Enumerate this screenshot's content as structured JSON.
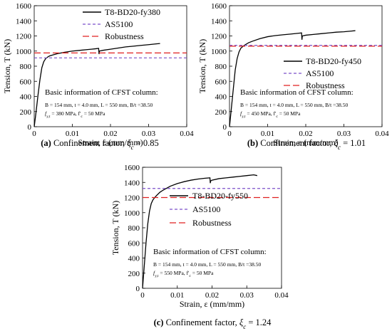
{
  "colors": {
    "curve": "#000000",
    "as5100": "#7b4fc9",
    "robustness": "#e02020",
    "axis": "#000000"
  },
  "info_title": "Basic information of CFST column:",
  "info_geom": "B = 154 mm, t = 4.0 mm, L = 550 mm, B/t =38.50",
  "chart_data": [
    {
      "type": "line",
      "id": "a",
      "xlabel": "Strain, ε (mm/mm)",
      "ylabel": "Tension, T (kN)",
      "xlim": [
        0,
        0.04
      ],
      "ylim": [
        0,
        1600
      ],
      "xticks": [
        "0",
        "0.01",
        "0.02",
        "0.03",
        "0.04"
      ],
      "yticks": [
        "0",
        "200",
        "400",
        "600",
        "800",
        "1000",
        "1200",
        "1400",
        "1600"
      ],
      "grid": false,
      "legend_position": "top-right",
      "series": [
        {
          "name": "T8-BD20-fy380",
          "style": "solid",
          "x": [
            0,
            0.0005,
            0.001,
            0.0015,
            0.002,
            0.0025,
            0.003,
            0.0035,
            0.004,
            0.005,
            0.006,
            0.008,
            0.01,
            0.012,
            0.014,
            0.016,
            0.0169,
            0.017,
            0.0171,
            0.018,
            0.02,
            0.022,
            0.024,
            0.026,
            0.028,
            0.03,
            0.032,
            0.033
          ],
          "y": [
            0,
            200,
            420,
            620,
            780,
            860,
            900,
            920,
            935,
            950,
            965,
            985,
            1000,
            1010,
            1020,
            1030,
            1035,
            960,
            1000,
            1010,
            1025,
            1040,
            1055,
            1065,
            1075,
            1085,
            1095,
            1100
          ]
        },
        {
          "name": "AS5100",
          "style": "dashed",
          "x": [
            0,
            0.04
          ],
          "y": [
            910,
            910
          ]
        },
        {
          "name": "Robustness",
          "style": "longdash",
          "x": [
            0,
            0.04
          ],
          "y": [
            975,
            975
          ]
        }
      ],
      "info_strength": "f_y,t = 380 MPa, f'_c = 50 MPa",
      "caption": {
        "label": "(a)",
        "text": "Confinement factor,",
        "xi": "ξ",
        "sub": "c",
        "value": "= 0.85"
      }
    },
    {
      "type": "line",
      "id": "b",
      "xlabel": "Strain, ε (mm/mm)",
      "ylabel": "Tension, T (kN)",
      "xlim": [
        0,
        0.04
      ],
      "ylim": [
        0,
        1600
      ],
      "xticks": [
        "0",
        "0.01",
        "0.02",
        "0.03",
        "0.04"
      ],
      "yticks": [
        "0",
        "200",
        "400",
        "600",
        "800",
        "1000",
        "1200",
        "1400",
        "1600"
      ],
      "grid": false,
      "legend_position": "right",
      "series": [
        {
          "name": "T8-BD20-fy450",
          "style": "solid",
          "x": [
            0,
            0.0005,
            0.001,
            0.0015,
            0.002,
            0.0025,
            0.003,
            0.0035,
            0.004,
            0.005,
            0.006,
            0.008,
            0.01,
            0.012,
            0.014,
            0.016,
            0.018,
            0.0189,
            0.019,
            0.0191,
            0.02,
            0.022,
            0.024,
            0.026,
            0.028,
            0.03,
            0.032,
            0.033
          ],
          "y": [
            0,
            250,
            500,
            750,
            900,
            990,
            1040,
            1060,
            1080,
            1110,
            1130,
            1165,
            1190,
            1205,
            1215,
            1225,
            1235,
            1240,
            1150,
            1200,
            1210,
            1220,
            1230,
            1240,
            1250,
            1255,
            1265,
            1270
          ]
        },
        {
          "name": "AS5100",
          "style": "dashed",
          "x": [
            0,
            0.04
          ],
          "y": [
            1075,
            1075
          ]
        },
        {
          "name": "Robustness",
          "style": "longdash",
          "x": [
            0,
            0.04
          ],
          "y": [
            1065,
            1065
          ]
        }
      ],
      "info_strength": "f_y,t = 450 MPa, f'_c = 50 MPa",
      "caption": {
        "label": "(b)",
        "text": "Confinement factor,",
        "xi": "ξ",
        "sub": "c",
        "value": "= 1.01"
      }
    },
    {
      "type": "line",
      "id": "c",
      "xlabel": "Strain, ε (mm/mm)",
      "ylabel": "Tension, T (kN)",
      "xlim": [
        0,
        0.04
      ],
      "ylim": [
        0,
        1600
      ],
      "xticks": [
        "0",
        "0.01",
        "0.02",
        "0.03",
        "0.04"
      ],
      "yticks": [
        "0",
        "200",
        "400",
        "600",
        "800",
        "1000",
        "1200",
        "1400",
        "1600"
      ],
      "grid": false,
      "legend_position": "right",
      "series": [
        {
          "name": "T8-BD20-fy550",
          "style": "solid",
          "x": [
            0,
            0.0005,
            0.001,
            0.0015,
            0.002,
            0.0025,
            0.003,
            0.0035,
            0.004,
            0.005,
            0.006,
            0.008,
            0.01,
            0.012,
            0.014,
            0.016,
            0.018,
            0.0194,
            0.0195,
            0.0196,
            0.02,
            0.022,
            0.024,
            0.026,
            0.028,
            0.03,
            0.032,
            0.033
          ],
          "y": [
            0,
            300,
            600,
            850,
            1020,
            1120,
            1170,
            1200,
            1225,
            1270,
            1300,
            1350,
            1385,
            1410,
            1430,
            1445,
            1455,
            1460,
            1390,
            1420,
            1430,
            1450,
            1460,
            1470,
            1480,
            1490,
            1500,
            1490
          ]
        },
        {
          "name": "AS5100",
          "style": "dashed",
          "x": [
            0,
            0.04
          ],
          "y": [
            1320,
            1320
          ]
        },
        {
          "name": "Robustness",
          "style": "longdash",
          "x": [
            0,
            0.04
          ],
          "y": [
            1200,
            1200
          ]
        }
      ],
      "info_strength": "f_y,t = 550 MPa, f'_c = 50 MPa",
      "caption": {
        "label": "(c)",
        "text": "Confinement factor,",
        "xi": "ξ",
        "sub": "c",
        "value": "= 1.24"
      }
    }
  ]
}
